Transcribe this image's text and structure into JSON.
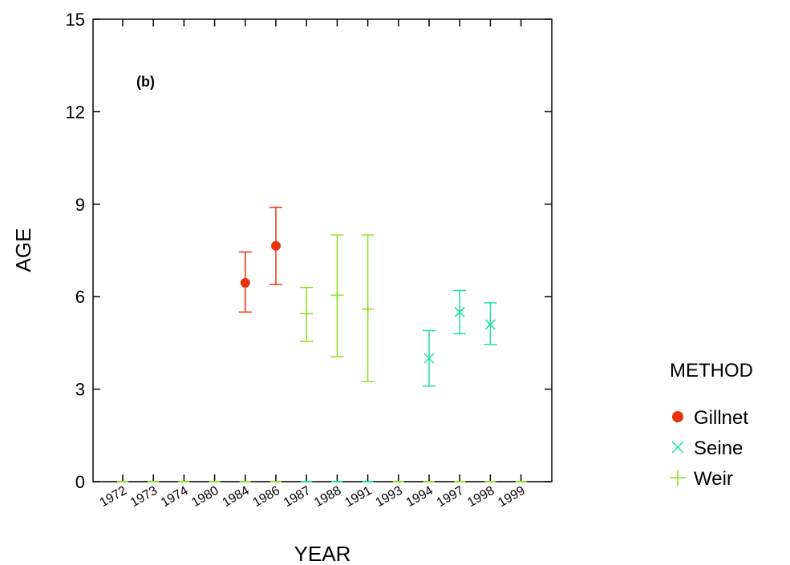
{
  "chart_data": {
    "type": "scatter",
    "panel_label": "(b)",
    "xlabel": "YEAR",
    "ylabel": "AGE",
    "ylim": [
      0,
      15
    ],
    "yticks": [
      0,
      3,
      6,
      9,
      12,
      15
    ],
    "categories": [
      "1972",
      "1973",
      "1974",
      "1980",
      "1984",
      "1986",
      "1987",
      "1988",
      "1991",
      "1993",
      "1994",
      "1997",
      "1998",
      "1999"
    ],
    "legend": {
      "title": "METHOD",
      "position": "right"
    },
    "series": [
      {
        "name": "Gillnet",
        "marker": "circle",
        "color": "#e8320c",
        "points": [
          {
            "x": "1984",
            "y": 6.45,
            "low": 5.5,
            "high": 7.45
          },
          {
            "x": "1986",
            "y": 7.65,
            "low": 6.4,
            "high": 8.9
          }
        ]
      },
      {
        "name": "Seine",
        "marker": "x",
        "color": "#1ee0a0",
        "points": [
          {
            "x": "1994",
            "y": 4.0,
            "low": 3.1,
            "high": 4.9
          },
          {
            "x": "1997",
            "y": 5.5,
            "low": 4.8,
            "high": 6.2
          },
          {
            "x": "1998",
            "y": 5.1,
            "low": 4.45,
            "high": 5.8
          }
        ]
      },
      {
        "name": "Weir",
        "marker": "plus",
        "color": "#88e020",
        "points": [
          {
            "x": "1987",
            "y": 5.45,
            "low": 4.55,
            "high": 6.3
          },
          {
            "x": "1988",
            "y": 6.05,
            "low": 4.05,
            "high": 8.0
          },
          {
            "x": "1991",
            "y": 5.6,
            "low": 3.25,
            "high": 8.0
          }
        ]
      }
    ],
    "zero_marks": [
      {
        "x": "1972",
        "color": "#88e020"
      },
      {
        "x": "1973",
        "color": "#88e020"
      },
      {
        "x": "1974",
        "color": "#88e020"
      },
      {
        "x": "1980",
        "color": "#88e020"
      },
      {
        "x": "1984",
        "color": "#88e020"
      },
      {
        "x": "1986",
        "color": "#88e020"
      },
      {
        "x": "1987",
        "color": "#1ee0a0"
      },
      {
        "x": "1988",
        "color": "#1ee0a0"
      },
      {
        "x": "1991",
        "color": "#1ee0a0"
      },
      {
        "x": "1993",
        "color": "#88e020"
      },
      {
        "x": "1994",
        "color": "#88e020"
      },
      {
        "x": "1997",
        "color": "#88e020"
      },
      {
        "x": "1998",
        "color": "#88e020"
      },
      {
        "x": "1999",
        "color": "#88e020"
      }
    ]
  }
}
